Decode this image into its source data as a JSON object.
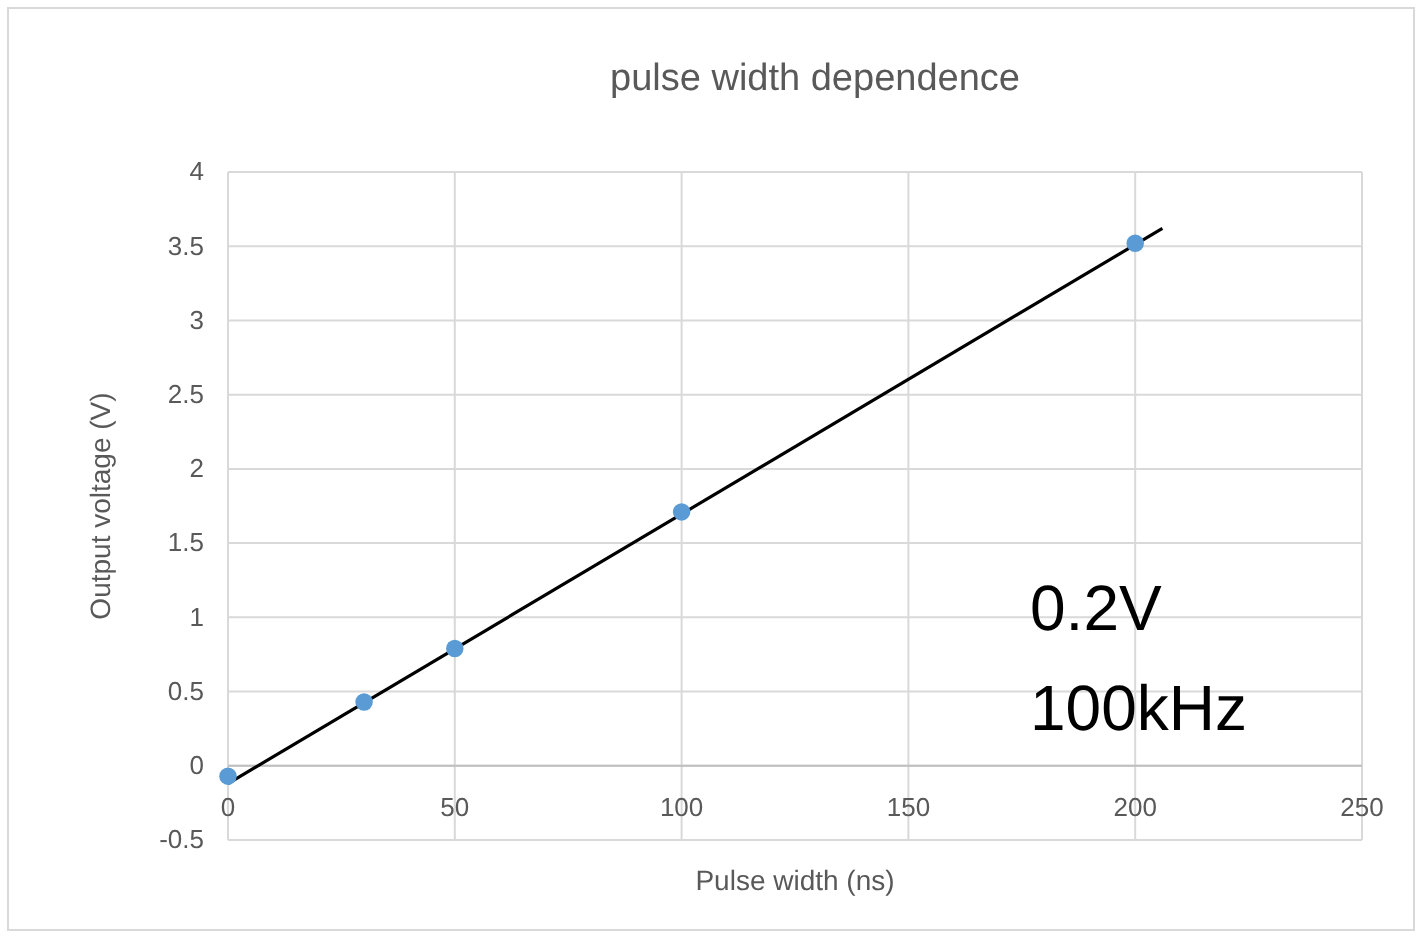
{
  "chart_data": {
    "type": "scatter",
    "title": "pulse width dependence",
    "xlabel": "Pulse width (ns)",
    "ylabel": "Output voltage (V)",
    "series": [
      {
        "color": "#5b9bd5",
        "marker": "circle",
        "x": [
          0,
          30,
          50,
          100,
          200
        ],
        "values": [
          -0.07,
          0.43,
          0.79,
          1.71,
          3.52
        ]
      },
      {
        "type": "line",
        "color": "#000000",
        "marker": "none",
        "x": [
          0,
          206
        ],
        "values": [
          -0.12,
          3.62
        ]
      }
    ],
    "xlim": [
      0,
      250
    ],
    "xticks": [
      0,
      50,
      100,
      150,
      200,
      250
    ],
    "ylim": [
      -0.5,
      4
    ],
    "yticks": [
      -0.5,
      0,
      0.5,
      1,
      1.5,
      2,
      2.5,
      3,
      3.5,
      4
    ],
    "grid": true,
    "line_style": "solid",
    "annotations": [
      "0.2V",
      "100kHz"
    ]
  }
}
